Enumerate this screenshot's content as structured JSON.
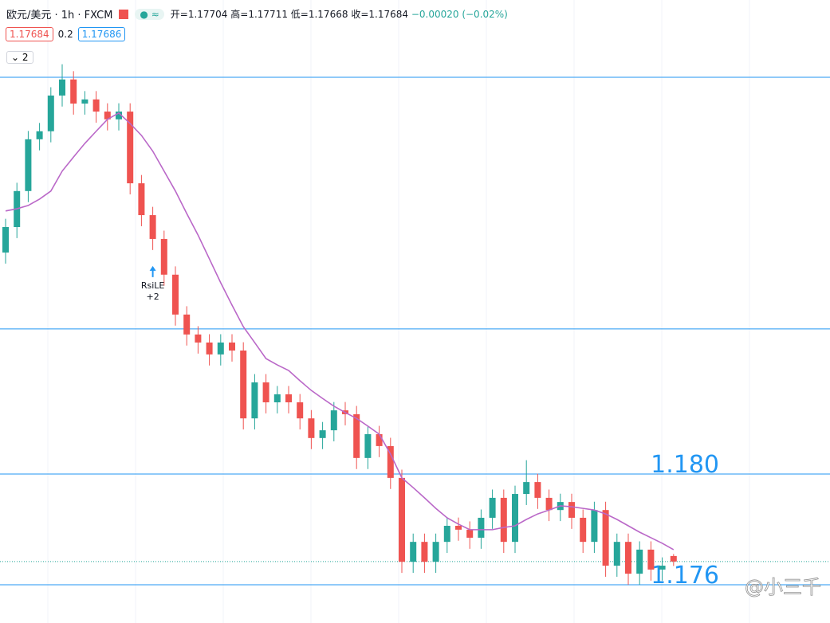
{
  "header": {
    "symbol": "欧元/美元 · 1h · FXCM",
    "ohlc": [
      "开=1.17704",
      "高=1.17711",
      "低=1.17668",
      "收=1.17684",
      "−0.00020 (−0.02%)"
    ],
    "bid": "1.17684",
    "spread": "0.2",
    "ask": "1.17686",
    "indicators": "2"
  },
  "chart_data": {
    "type": "candlestick",
    "ylim": [
      1.17462,
      1.19712
    ],
    "up_color": "#26a69a",
    "down_color": "#ef5350",
    "open": [
      1.188,
      1.18892,
      1.19022,
      1.19209,
      1.19238,
      1.19367,
      1.19425,
      1.19338,
      1.19353,
      1.19309,
      1.19281,
      1.19309,
      1.1905,
      1.18935,
      1.18849,
      1.1872,
      1.18576,
      1.18504,
      1.18475,
      1.18432,
      1.18475,
      1.18446,
      1.18201,
      1.18331,
      1.18259,
      1.18288,
      1.18259,
      1.18201,
      1.1813,
      1.18158,
      1.1823,
      1.18216,
      1.18058,
      1.18144,
      1.18101,
      1.17986,
      1.17683,
      1.17755,
      1.17683,
      1.17755,
      1.17813,
      1.17799,
      1.1777,
      1.17842,
      1.17914,
      1.17755,
      1.17928,
      1.17971,
      1.17914,
      1.1787,
      1.17899,
      1.17842,
      1.17755,
      1.1787,
      1.17669,
      1.17755,
      1.1764,
      1.17727,
      1.17655,
      1.17704
    ],
    "high": [
      1.18922,
      1.19052,
      1.19239,
      1.19268,
      1.19397,
      1.1948,
      1.19455,
      1.19383,
      1.19383,
      1.19339,
      1.19339,
      1.19339,
      1.1908,
      1.18965,
      1.18879,
      1.1875,
      1.18606,
      1.18534,
      1.18505,
      1.18505,
      1.18505,
      1.18476,
      1.18361,
      1.18361,
      1.18318,
      1.18318,
      1.18289,
      1.18231,
      1.18188,
      1.1826,
      1.1826,
      1.18246,
      1.18174,
      1.18174,
      1.18131,
      1.18016,
      1.17785,
      1.17785,
      1.17785,
      1.17843,
      1.17843,
      1.17829,
      1.17872,
      1.17944,
      1.17944,
      1.17958,
      1.1805,
      1.18001,
      1.17944,
      1.17929,
      1.17929,
      1.17872,
      1.179,
      1.179,
      1.17785,
      1.17785,
      1.17757,
      1.17757,
      1.17699,
      1.17711
    ],
    "low": [
      1.1876,
      1.18852,
      1.18982,
      1.19169,
      1.19198,
      1.19327,
      1.19298,
      1.19298,
      1.19269,
      1.19241,
      1.19241,
      1.1901,
      1.18895,
      1.18809,
      1.1868,
      1.18536,
      1.18464,
      1.18435,
      1.18392,
      1.18392,
      1.18406,
      1.18161,
      1.18161,
      1.18219,
      1.18219,
      1.18219,
      1.18161,
      1.1809,
      1.1809,
      1.18118,
      1.18176,
      1.18018,
      1.18018,
      1.18061,
      1.17946,
      1.17643,
      1.17643,
      1.17643,
      1.17643,
      1.17715,
      1.17759,
      1.1773,
      1.1773,
      1.17802,
      1.17715,
      1.17715,
      1.17888,
      1.17874,
      1.1783,
      1.1783,
      1.17802,
      1.17715,
      1.17715,
      1.17629,
      1.17629,
      1.176,
      1.176,
      1.17615,
      1.17615,
      1.17668
    ],
    "close": [
      1.18892,
      1.19022,
      1.19209,
      1.19238,
      1.19367,
      1.19425,
      1.19338,
      1.19353,
      1.19309,
      1.19281,
      1.19309,
      1.1905,
      1.18935,
      1.18849,
      1.1872,
      1.18576,
      1.18504,
      1.18475,
      1.18432,
      1.18475,
      1.18446,
      1.18201,
      1.18331,
      1.18259,
      1.18288,
      1.18259,
      1.18201,
      1.1813,
      1.18158,
      1.1823,
      1.18216,
      1.18058,
      1.18144,
      1.18101,
      1.17986,
      1.17683,
      1.17755,
      1.17683,
      1.17755,
      1.17813,
      1.17799,
      1.1777,
      1.17842,
      1.17914,
      1.17755,
      1.17928,
      1.17971,
      1.17914,
      1.1787,
      1.17899,
      1.17842,
      1.17755,
      1.1787,
      1.17669,
      1.17755,
      1.1764,
      1.17727,
      1.17655,
      1.17669,
      1.17684
    ],
    "moving_average": {
      "color": "#ba68c8",
      "values": [
        1.1895,
        1.18958,
        1.1897,
        1.18993,
        1.19022,
        1.19094,
        1.19145,
        1.19194,
        1.19238,
        1.19281,
        1.19304,
        1.19266,
        1.19223,
        1.19166,
        1.19094,
        1.19022,
        1.18941,
        1.18863,
        1.18777,
        1.18691,
        1.1861,
        1.18532,
        1.18475,
        1.18417,
        1.18394,
        1.18374,
        1.18337,
        1.18302,
        1.18273,
        1.18245,
        1.18222,
        1.18201,
        1.18173,
        1.18144,
        1.18072,
        1.17986,
        1.17951,
        1.17914,
        1.17876,
        1.17842,
        1.17819,
        1.17799,
        1.17799,
        1.17799,
        1.17807,
        1.17813,
        1.17836,
        1.17856,
        1.1787,
        1.17885,
        1.17882,
        1.17876,
        1.1787,
        1.17856,
        1.17836,
        1.17813,
        1.1779,
        1.1777,
        1.1775,
        1.17727
      ]
    },
    "levels": [
      1.19433,
      1.18524,
      {
        "value": 1.18,
        "label": "1.180"
      },
      {
        "value": 1.176,
        "label": "1.176"
      }
    ],
    "level_color": "#2196f3",
    "last_price": 1.17684,
    "annotation": {
      "text": "RsiLE",
      "sub": "+2"
    },
    "watermark": "@小三千"
  }
}
